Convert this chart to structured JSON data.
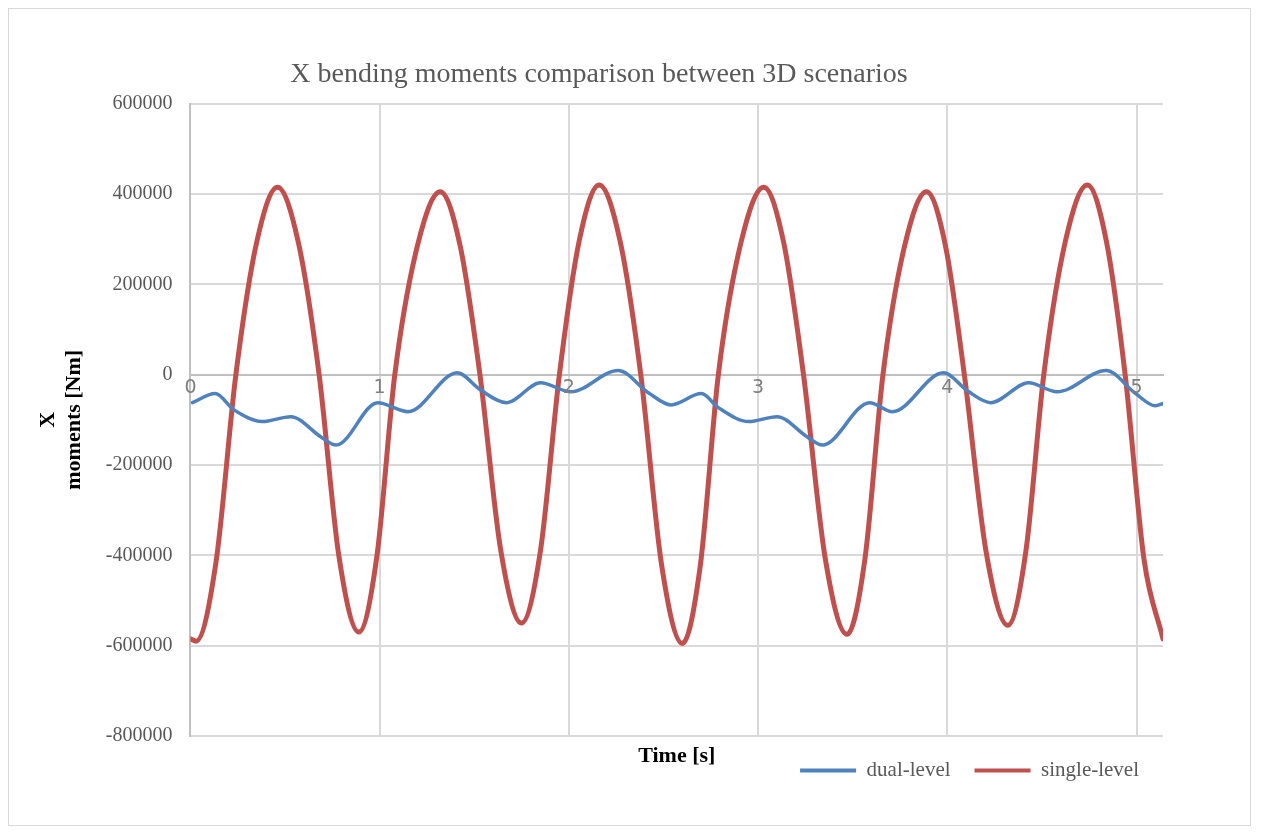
{
  "chart_data": {
    "type": "line",
    "title": "X bending moments comparison between 3D scenarios",
    "xlabel": "Time [s]",
    "ylabel": "X\nmoments [Nm]",
    "xlim": [
      0,
      5.14
    ],
    "xticks": [
      0,
      1,
      2,
      3,
      4,
      5
    ],
    "ylim": [
      -800000,
      600000
    ],
    "yticks": [
      -800000,
      -600000,
      -400000,
      -200000,
      0,
      200000,
      400000,
      600000
    ],
    "grid": true,
    "legend": "bottom right",
    "marker": "none",
    "line_style": "solid",
    "series": [
      {
        "name": "dual-level",
        "color": "#4f81bd",
        "x": [
          0.01,
          0.13,
          0.23,
          0.38,
          0.53,
          0.69,
          0.77,
          0.99,
          1.15,
          1.41,
          1.53,
          1.67,
          1.85,
          2.01,
          2.26,
          2.42,
          2.54,
          2.7,
          2.79,
          2.95,
          3.1,
          3.26,
          3.34,
          3.59,
          3.71,
          3.98,
          4.11,
          4.23,
          4.43,
          4.58,
          4.84,
          4.99,
          5.1,
          5.14
        ],
        "values": [
          -62000,
          -42000,
          -78000,
          -104000,
          -93000,
          -138000,
          -156000,
          -62000,
          -82000,
          4000,
          -33000,
          -62000,
          -18000,
          -38000,
          9000,
          -40000,
          -67000,
          -42000,
          -73000,
          -104000,
          -93000,
          -138000,
          -156000,
          -62000,
          -82000,
          4000,
          -37000,
          -62000,
          -18000,
          -38000,
          9000,
          -40000,
          -69000,
          -64000
        ]
      },
      {
        "name": "single-level",
        "color": "#c0504d",
        "x": [
          0,
          0.03,
          0.135,
          0.24,
          0.35,
          0.46,
          0.57,
          0.68,
          0.785,
          0.89,
          0.985,
          1.08,
          1.2,
          1.32,
          1.425,
          1.53,
          1.64,
          1.75,
          1.85,
          1.95,
          2.055,
          2.16,
          2.27,
          2.38,
          2.49,
          2.6,
          2.695,
          2.79,
          2.91,
          3.03,
          3.135,
          3.24,
          3.355,
          3.47,
          3.565,
          3.66,
          3.775,
          3.89,
          3.99,
          4.09,
          4.205,
          4.32,
          4.415,
          4.51,
          4.625,
          4.74,
          4.84,
          4.94,
          5.04,
          5.14
        ],
        "values": [
          -585000,
          -590000,
          -415000,
          0,
          293000,
          415000,
          293000,
          0,
          -403000,
          -570000,
          -403000,
          0,
          286000,
          405000,
          286000,
          0,
          -389000,
          -550000,
          -389000,
          0,
          297000,
          420000,
          297000,
          0,
          -421000,
          -595000,
          -421000,
          0,
          293000,
          415000,
          293000,
          0,
          -407000,
          -575000,
          -407000,
          0,
          286000,
          405000,
          286000,
          0,
          -392000,
          -555000,
          -392000,
          0,
          297000,
          420000,
          297000,
          0,
          -410000,
          -585000
        ]
      }
    ]
  }
}
